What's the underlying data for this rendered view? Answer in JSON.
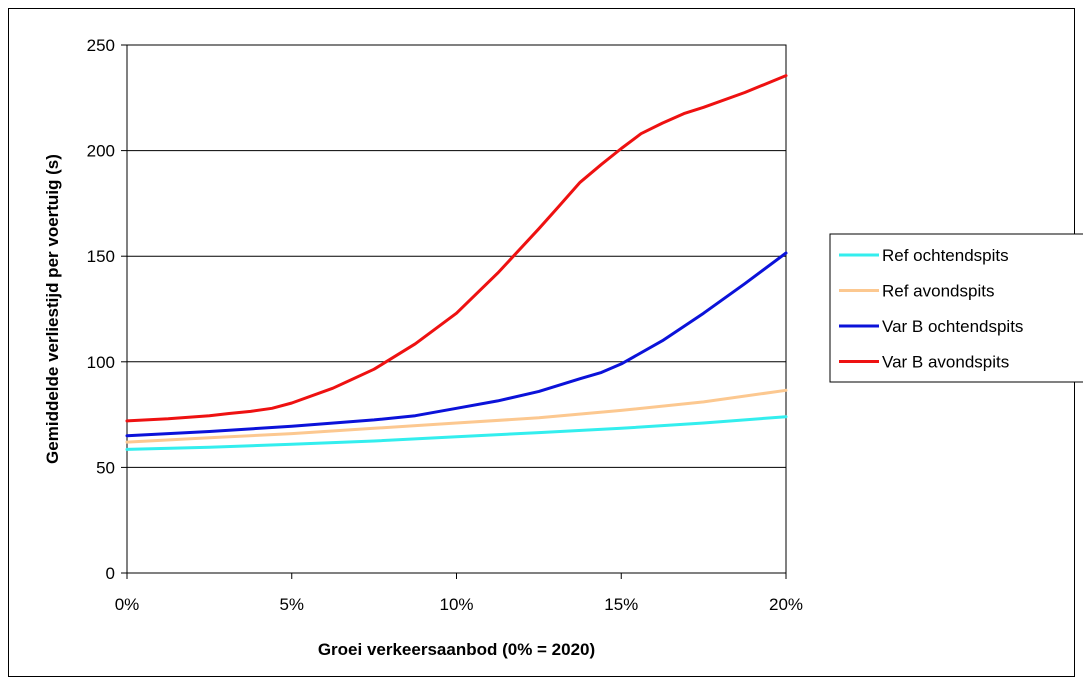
{
  "chart_data": {
    "type": "line",
    "title": "",
    "xlabel": "Groei verkeersaanbod (0% = 2020)",
    "ylabel": "Gemiddelde verliestijd per voertuig (s)",
    "xlim": [
      0,
      20
    ],
    "ylim": [
      0,
      250
    ],
    "x_ticks": [
      "0%",
      "5%",
      "10%",
      "15%",
      "20%"
    ],
    "y_ticks": [
      "0",
      "50",
      "100",
      "150",
      "200",
      "250"
    ],
    "grid": "horizontal",
    "legend_position": "right",
    "series": [
      {
        "name": "Ref ochtendspits",
        "color": "#33eeee",
        "x": [
          0,
          2.5,
          5,
          7.5,
          10,
          12.5,
          15,
          17.5,
          20
        ],
        "values": [
          58.5,
          59.5,
          61,
          62.5,
          64.5,
          66.5,
          68.5,
          71,
          74
        ]
      },
      {
        "name": "Ref avondspits",
        "color": "#fcc890",
        "x": [
          0,
          2.5,
          5,
          7.5,
          10,
          12.5,
          15,
          17.5,
          20
        ],
        "values": [
          62,
          64,
          66,
          68.5,
          71,
          73.5,
          77,
          81,
          86.5
        ]
      },
      {
        "name": "Var B ochtendspits",
        "color": "#0b12d9",
        "x": [
          0,
          2.5,
          5,
          7.5,
          8.75,
          10,
          11.25,
          12.5,
          13.75,
          14.4,
          15,
          16.25,
          17.5,
          18.75,
          20
        ],
        "values": [
          65,
          67,
          69.5,
          72.5,
          74.5,
          78,
          81.5,
          86,
          92,
          95,
          99,
          110,
          123,
          137,
          151.5
        ]
      },
      {
        "name": "Var B avondspits",
        "color": "#ee1111",
        "x": [
          0,
          1.25,
          2.5,
          3.1,
          3.75,
          4.4,
          5,
          6.25,
          7.5,
          8.75,
          10,
          11.25,
          12.5,
          13.1,
          13.75,
          14.4,
          15,
          15.6,
          16.25,
          16.9,
          17.5,
          18.75,
          20
        ],
        "values": [
          72,
          73,
          74.5,
          75.5,
          76.5,
          78,
          80.5,
          87.5,
          96.5,
          108.5,
          123,
          142,
          163,
          173.5,
          185,
          193.5,
          201,
          208,
          213,
          217.5,
          220.5,
          227.5,
          235.5
        ]
      }
    ]
  }
}
